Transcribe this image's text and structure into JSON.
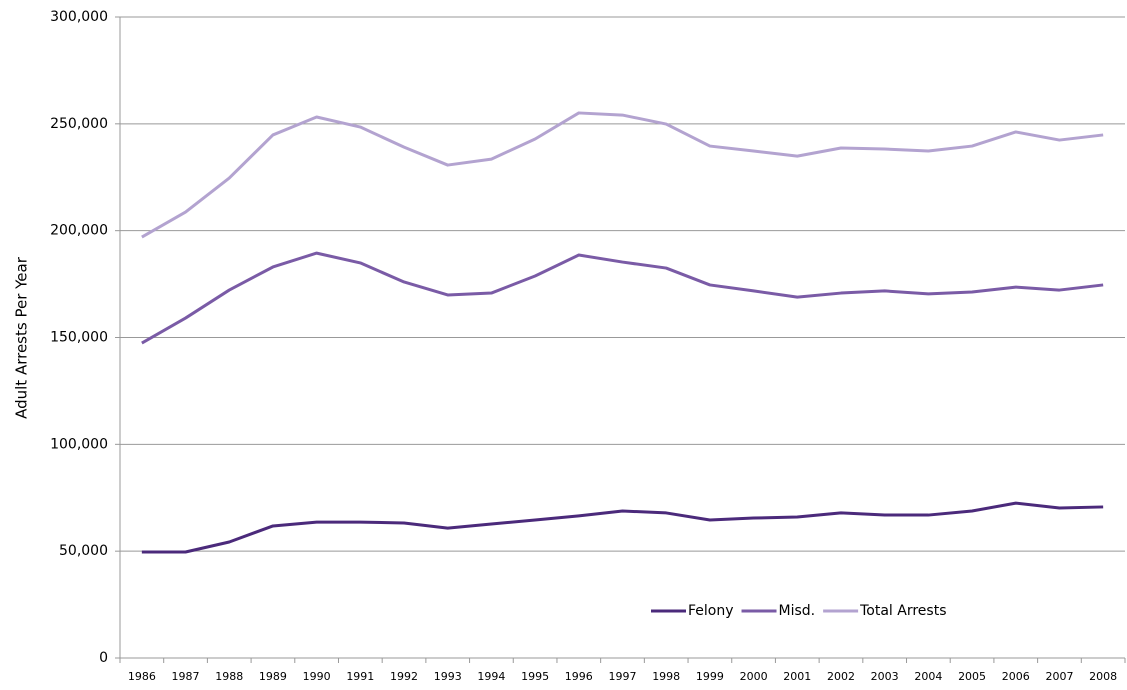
{
  "chart_data": {
    "type": "line",
    "y_label": "Adult Arrests Per Year",
    "categories": [
      "1986",
      "1987",
      "1988",
      "1989",
      "1990",
      "1991",
      "1992",
      "1993",
      "1994",
      "1995",
      "1996",
      "1997",
      "1998",
      "1999",
      "2000",
      "2001",
      "2002",
      "2003",
      "2004",
      "2005",
      "2006",
      "2007",
      "2008"
    ],
    "series": [
      {
        "name": "Felony",
        "color": "#4b2a7b",
        "values": [
          49600,
          49600,
          54300,
          61800,
          63600,
          63600,
          63200,
          60800,
          62700,
          64600,
          66500,
          68800,
          67900,
          64600,
          65500,
          66000,
          67900,
          66900,
          66900,
          68800,
          72500,
          70200,
          70700
        ]
      },
      {
        "name": "Misd.",
        "color": "#7a5ba6",
        "values": [
          147400,
          159100,
          172200,
          183000,
          189500,
          184900,
          176000,
          169900,
          170800,
          178800,
          188600,
          185300,
          182500,
          174600,
          171800,
          168900,
          170800,
          171800,
          170400,
          171300,
          173600,
          172200,
          174600
        ]
      },
      {
        "name": "Total Arrests",
        "color": "#b3a3d0",
        "values": [
          197000,
          208700,
          224600,
          244800,
          253200,
          248500,
          239100,
          230700,
          233500,
          242900,
          255100,
          254100,
          249900,
          239600,
          237300,
          234900,
          238700,
          238200,
          237300,
          239600,
          246200,
          242400,
          244800
        ]
      }
    ],
    "ylim": [
      0,
      300000
    ],
    "yticks": [
      0,
      {
        "value": 50000,
        "label": "50,000"
      },
      {
        "value": 100000,
        "label": "100,000"
      },
      {
        "value": 150000,
        "label": "150,000"
      },
      {
        "value": 200000,
        "label": "200,000"
      },
      {
        "value": 250000,
        "label": "250,000"
      },
      {
        "value": 300000,
        "label": "300,000"
      }
    ],
    "grid": true,
    "legend": "bottom"
  }
}
